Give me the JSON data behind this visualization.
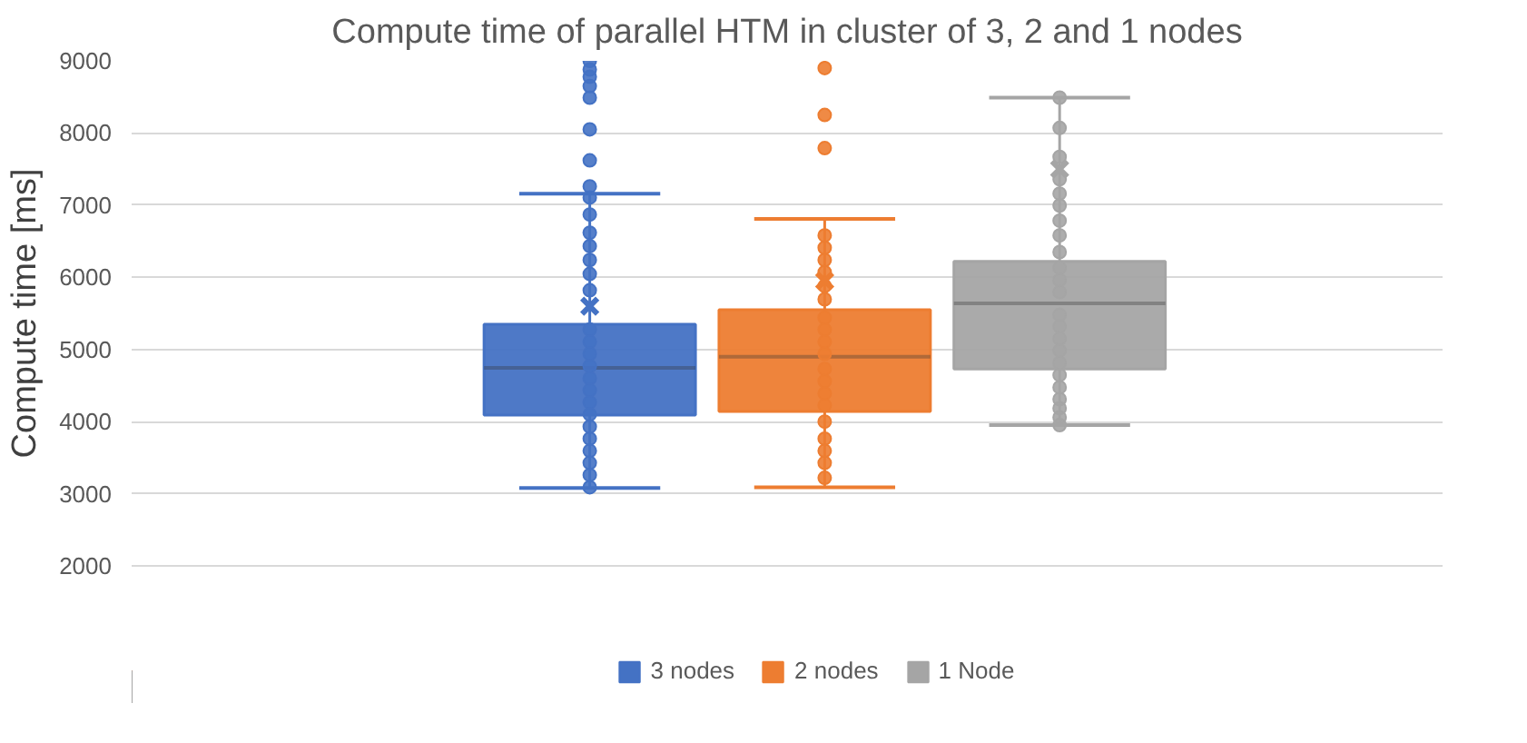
{
  "chart_data": {
    "type": "box",
    "title": "Compute time of parallel HTM in cluster of 3, 2 and 1 nodes",
    "ylabel": "Compute time [ms]",
    "categories": [
      null
    ],
    "ylim": [
      2000,
      9000
    ],
    "yticks": [
      2000,
      3000,
      4000,
      5000,
      6000,
      7000,
      8000,
      9000
    ],
    "grid": "y",
    "legend": "bottom",
    "tick_labels": "y",
    "series": [
      {
        "name": "3 nodes",
        "color": "#4472c4",
        "boxes": [
          {
            "low": 3080,
            "q1": 4090,
            "median": 4745,
            "q3": 5350,
            "high": 7160,
            "mean": 5600,
            "outliers": [
              9000,
              8880,
              8780,
              8650,
              8490,
              8050,
              7620,
              7260,
              7106,
              6870,
              6617,
              6433,
              6240,
              6047,
              5820,
              5275,
              5106,
              4940,
              4770,
              4600,
              4435,
              4267,
              4100,
              3930,
              3763,
              3595,
              3428,
              3260,
              3090
            ]
          }
        ]
      },
      {
        "name": "2 nodes",
        "color": "#ed7d31",
        "boxes": [
          {
            "low": 3090,
            "q1": 4140,
            "median": 4900,
            "q3": 5550,
            "high": 6810,
            "mean": 5950,
            "outliers": [
              8900,
              8250,
              7790,
              6580,
              6410,
              6240,
              6070,
              5880,
              5695,
              5440,
              5275,
              5106,
              4940,
              4730,
              4560,
              4390,
              4225,
              4000,
              3763,
              3595,
              3428,
              3220
            ]
          }
        ]
      },
      {
        "name": "1 Node",
        "color": "#a5a5a5",
        "boxes": [
          {
            "low": 3950,
            "q1": 4730,
            "median": 5640,
            "q3": 6220,
            "high": 8490,
            "mean": 7500,
            "outliers": [
              8490,
              8070,
              7670,
              7360,
              7160,
              6995,
              6785,
              6580,
              6350,
              6130,
              5960,
              5795,
              5480,
              5320,
              5150,
              4985,
              4815,
              4645,
              4475,
              4310,
              4185,
              4060,
              3950
            ]
          }
        ]
      }
    ]
  }
}
